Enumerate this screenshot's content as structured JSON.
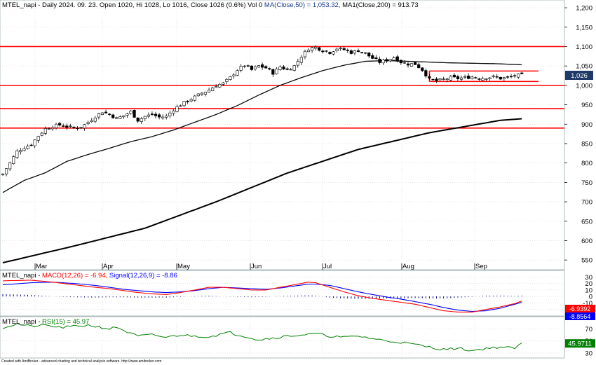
{
  "header": {
    "price": {
      "symbol": "MTEL_napi",
      "info": " - Daily 2024. 09. 23. Open 1020, Hi 1028, Lo 1016, Close 1026 (0.6%) Vol 0 ",
      "ma50": "MA(Close,50) = 1,053.32, ",
      "ma200": "MA1(Close,200) = 913.73"
    },
    "macd": {
      "symbol": "MTEL_napi",
      "sep": " - ",
      "macd": "MACD(12,26) = -6.94, ",
      "signal": "Signal(12,26,9) = -8.86"
    },
    "rsi": {
      "symbol": "MTEL_napi",
      "sep": " - ",
      "rsi": "RSI(15) = 45.97"
    }
  },
  "credit": "Created with AmiBroker - advanced charting and technical analysis software. http://www.amibroker.com",
  "badges": {
    "price": "1,026",
    "macd": "-6.9392",
    "signal": "-8.8564",
    "rsi": "45.9711"
  },
  "colors": {
    "candle_up": "#ffffff",
    "candle_down": "#000000",
    "ma50": "#0a0a0a",
    "ma200": "#000000",
    "support": "#ff0000",
    "macd": "#ff0000",
    "signal": "#0000ff",
    "rsi": "#008000",
    "grid": "#d8d8d8",
    "badge_price": "#1f3a66"
  },
  "chart_data": [
    {
      "type": "candlestick",
      "x_months": [
        "Mar",
        "Apr",
        "May",
        "Jun",
        "Jul",
        "Aug",
        "Sep"
      ],
      "y_ticks": [
        550,
        600,
        650,
        700,
        750,
        800,
        850,
        900,
        950,
        1000,
        1050,
        1100,
        1150,
        1200
      ],
      "ylim": [
        525,
        1220
      ],
      "horizontal_levels": [
        1100,
        1000,
        940,
        890
      ],
      "box_level": 1037,
      "box_level_low": 1010,
      "close_anchors": [
        [
          0,
          772
        ],
        [
          2,
          800
        ],
        [
          4,
          830
        ],
        [
          6,
          840
        ],
        [
          8,
          848
        ],
        [
          10,
          870
        ],
        [
          12,
          888
        ],
        [
          14,
          895
        ],
        [
          16,
          898
        ],
        [
          18,
          894
        ],
        [
          20,
          890
        ],
        [
          22,
          892
        ],
        [
          24,
          905
        ],
        [
          26,
          920
        ],
        [
          28,
          932
        ],
        [
          30,
          925
        ],
        [
          32,
          915
        ],
        [
          34,
          922
        ],
        [
          36,
          932
        ],
        [
          38,
          910
        ],
        [
          40,
          920
        ],
        [
          42,
          925
        ],
        [
          44,
          918
        ],
        [
          46,
          920
        ],
        [
          48,
          938
        ],
        [
          50,
          950
        ],
        [
          52,
          960
        ],
        [
          54,
          970
        ],
        [
          56,
          980
        ],
        [
          58,
          988
        ],
        [
          60,
          1000
        ],
        [
          62,
          1005
        ],
        [
          64,
          1020
        ],
        [
          66,
          1040
        ],
        [
          68,
          1052
        ],
        [
          70,
          1040
        ],
        [
          72,
          1050
        ],
        [
          74,
          1045
        ],
        [
          76,
          1032
        ],
        [
          78,
          1048
        ],
        [
          80,
          1040
        ],
        [
          82,
          1050
        ],
        [
          84,
          1075
        ],
        [
          86,
          1095
        ],
        [
          88,
          1098
        ],
        [
          90,
          1090
        ],
        [
          92,
          1085
        ],
        [
          94,
          1095
        ],
        [
          96,
          1092
        ],
        [
          98,
          1085
        ],
        [
          100,
          1090
        ],
        [
          102,
          1082
        ],
        [
          104,
          1070
        ],
        [
          106,
          1060
        ],
        [
          108,
          1065
        ],
        [
          110,
          1072
        ],
        [
          112,
          1060
        ],
        [
          114,
          1055
        ],
        [
          116,
          1055
        ],
        [
          118,
          1040
        ],
        [
          120,
          1015
        ],
        [
          122,
          1012
        ],
        [
          124,
          1015
        ],
        [
          126,
          1020
        ],
        [
          128,
          1018
        ],
        [
          130,
          1020
        ],
        [
          132,
          1022
        ],
        [
          134,
          1018
        ],
        [
          136,
          1020
        ],
        [
          138,
          1022
        ],
        [
          140,
          1018
        ],
        [
          142,
          1020
        ],
        [
          144,
          1025
        ],
        [
          146,
          1026
        ]
      ],
      "ma50_anchors": [
        [
          0,
          724
        ],
        [
          6,
          755
        ],
        [
          12,
          775
        ],
        [
          18,
          804
        ],
        [
          24,
          822
        ],
        [
          30,
          838
        ],
        [
          36,
          855
        ],
        [
          42,
          868
        ],
        [
          48,
          885
        ],
        [
          54,
          905
        ],
        [
          60,
          925
        ],
        [
          66,
          948
        ],
        [
          72,
          975
        ],
        [
          78,
          1000
        ],
        [
          84,
          1020
        ],
        [
          90,
          1038
        ],
        [
          96,
          1052
        ],
        [
          102,
          1062
        ],
        [
          108,
          1064
        ],
        [
          114,
          1062
        ],
        [
          120,
          1060
        ],
        [
          126,
          1058
        ],
        [
          132,
          1057
        ],
        [
          138,
          1056
        ],
        [
          144,
          1054
        ],
        [
          146,
          1053
        ]
      ],
      "ma200_anchors": [
        [
          0,
          543
        ],
        [
          20,
          586
        ],
        [
          40,
          632
        ],
        [
          60,
          700
        ],
        [
          80,
          774
        ],
        [
          100,
          835
        ],
        [
          120,
          878
        ],
        [
          140,
          910
        ],
        [
          146,
          914
        ]
      ]
    },
    {
      "type": "line",
      "name": "MACD",
      "y_ticks": [
        -20,
        -10,
        0,
        10,
        20,
        30
      ],
      "ylim": [
        -30,
        40
      ],
      "macd_anchors": [
        [
          0,
          24
        ],
        [
          8,
          25
        ],
        [
          14,
          22
        ],
        [
          20,
          18
        ],
        [
          26,
          14
        ],
        [
          30,
          12
        ],
        [
          34,
          9
        ],
        [
          38,
          6
        ],
        [
          42,
          4
        ],
        [
          46,
          3
        ],
        [
          50,
          6
        ],
        [
          54,
          10
        ],
        [
          58,
          14
        ],
        [
          62,
          14
        ],
        [
          66,
          12
        ],
        [
          70,
          10
        ],
        [
          74,
          10
        ],
        [
          78,
          14
        ],
        [
          82,
          18
        ],
        [
          86,
          22
        ],
        [
          88,
          21
        ],
        [
          92,
          14
        ],
        [
          96,
          7
        ],
        [
          100,
          1
        ],
        [
          104,
          -3
        ],
        [
          108,
          -6
        ],
        [
          112,
          -9
        ],
        [
          116,
          -12
        ],
        [
          120,
          -17
        ],
        [
          124,
          -22
        ],
        [
          128,
          -24
        ],
        [
          132,
          -24
        ],
        [
          136,
          -20
        ],
        [
          140,
          -16
        ],
        [
          144,
          -11
        ],
        [
          146,
          -7
        ]
      ],
      "signal_anchors": [
        [
          0,
          18
        ],
        [
          8,
          21
        ],
        [
          14,
          22
        ],
        [
          20,
          20
        ],
        [
          26,
          17
        ],
        [
          30,
          14
        ],
        [
          34,
          11
        ],
        [
          38,
          9
        ],
        [
          42,
          7
        ],
        [
          46,
          6
        ],
        [
          50,
          7
        ],
        [
          54,
          9
        ],
        [
          58,
          12
        ],
        [
          62,
          14
        ],
        [
          66,
          13
        ],
        [
          70,
          12
        ],
        [
          74,
          11
        ],
        [
          78,
          13
        ],
        [
          82,
          16
        ],
        [
          86,
          19
        ],
        [
          88,
          19
        ],
        [
          92,
          17
        ],
        [
          96,
          12
        ],
        [
          100,
          7
        ],
        [
          104,
          3
        ],
        [
          108,
          -1
        ],
        [
          112,
          -4
        ],
        [
          116,
          -8
        ],
        [
          120,
          -12
        ],
        [
          124,
          -17
        ],
        [
          128,
          -21
        ],
        [
          132,
          -23
        ],
        [
          136,
          -22
        ],
        [
          140,
          -18
        ],
        [
          144,
          -12
        ],
        [
          146,
          -9
        ]
      ]
    },
    {
      "type": "line",
      "name": "RSI",
      "y_ticks": [
        30,
        50,
        70
      ],
      "ylim": [
        22,
        90
      ],
      "rsi_anchors": [
        [
          0,
          72
        ],
        [
          4,
          78
        ],
        [
          8,
          74
        ],
        [
          12,
          76
        ],
        [
          16,
          72
        ],
        [
          20,
          74
        ],
        [
          24,
          76
        ],
        [
          28,
          72
        ],
        [
          30,
          70
        ],
        [
          32,
          73
        ],
        [
          36,
          62
        ],
        [
          38,
          58
        ],
        [
          42,
          60
        ],
        [
          46,
          56
        ],
        [
          50,
          60
        ],
        [
          54,
          58
        ],
        [
          58,
          57
        ],
        [
          62,
          62
        ],
        [
          64,
          64
        ],
        [
          66,
          60
        ],
        [
          68,
          58
        ],
        [
          72,
          52
        ],
        [
          76,
          55
        ],
        [
          80,
          58
        ],
        [
          84,
          60
        ],
        [
          88,
          62
        ],
        [
          92,
          58
        ],
        [
          96,
          56
        ],
        [
          100,
          58
        ],
        [
          104,
          54
        ],
        [
          108,
          50
        ],
        [
          112,
          48
        ],
        [
          116,
          44
        ],
        [
          118,
          42
        ],
        [
          120,
          40
        ],
        [
          124,
          36
        ],
        [
          128,
          38
        ],
        [
          132,
          34
        ],
        [
          136,
          38
        ],
        [
          140,
          40
        ],
        [
          144,
          38
        ],
        [
          146,
          46
        ]
      ]
    }
  ]
}
